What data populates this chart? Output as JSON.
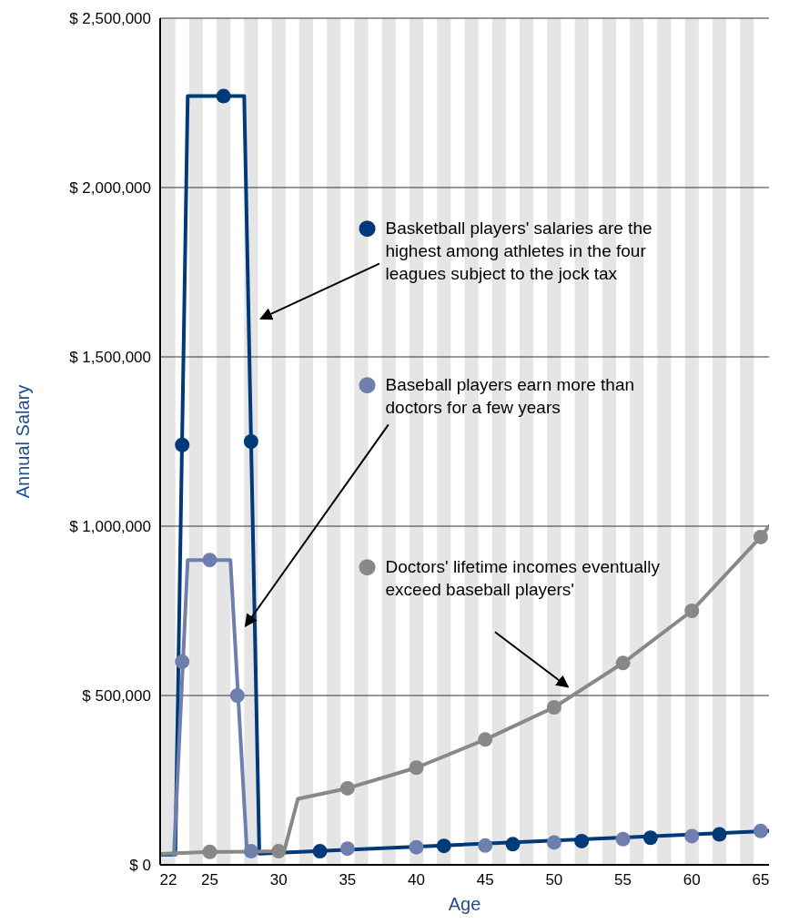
{
  "chart_data": {
    "type": "line",
    "xlabel": "Age",
    "ylabel": "Annual Salary",
    "xlim": [
      21.4,
      65.6
    ],
    "xticks": [
      22,
      25,
      30,
      35,
      40,
      45,
      50,
      55,
      60,
      65
    ],
    "ylim": [
      0,
      2500000
    ],
    "yticks": [
      {
        "value": 0,
        "label": "$ 0"
      },
      {
        "value": 500000,
        "label": "$ 500,000"
      },
      {
        "value": 1000000,
        "label": "$ 1,000,000"
      },
      {
        "value": 1500000,
        "label": "$ 1,500,000"
      },
      {
        "value": 2000000,
        "label": "$ 2,000,000"
      },
      {
        "value": 2500000,
        "label": "$ 2,500,000"
      }
    ],
    "grid": "y",
    "legend": "top right",
    "line_style": "solid",
    "series": [
      {
        "name": "Basketball players' salaries are the highest among athletes in the four leagues subject to the jock tax",
        "color": "#003a78",
        "x": [
          21.4,
          22.5,
          23.4,
          27.5,
          28.6,
          65.6
        ],
        "values": [
          30000,
          30000,
          2270000,
          2270000,
          33000,
          100000
        ],
        "marker": "none"
      },
      {
        "name": "Baseball players earn more than doctors for a few years",
        "color": "#6e7fae",
        "x": [
          22.4,
          23.4,
          26.5,
          27.7
        ],
        "values": [
          30000,
          900000,
          900000,
          40000
        ],
        "marker": "none"
      },
      {
        "name": "Doctors' lifetime incomes eventually exceed baseball players'",
        "color": "#888888",
        "x": [
          21.4,
          25,
          30.4,
          31.4,
          35,
          40,
          45,
          50,
          55,
          60,
          65,
          65.6
        ],
        "values": [
          32000,
          38000,
          40000,
          195000,
          226000,
          287000,
          370000,
          465000,
          596000,
          750000,
          968000,
          1000000
        ],
        "marker": "none"
      },
      {
        "type": "scatter",
        "color": "#888888",
        "x": [
          25,
          30,
          35,
          40,
          45,
          50,
          55,
          60,
          65
        ],
        "values": [
          38000,
          40000,
          226000,
          287000,
          370000,
          465000,
          596000,
          750000,
          968000
        ],
        "marker": "circle"
      },
      {
        "type": "scatter",
        "color": "#6e7fae",
        "x": [
          23,
          25,
          27,
          28,
          35,
          40,
          45,
          50,
          55,
          60,
          65
        ],
        "values": [
          600000,
          900000,
          500000,
          40000,
          48000,
          52000,
          57000,
          66000,
          76000,
          85000,
          100000
        ],
        "marker": "circle"
      },
      {
        "type": "scatter",
        "color": "#003a78",
        "x": [
          23,
          26,
          28,
          33,
          42,
          47,
          52,
          57,
          62
        ],
        "values": [
          1240000,
          2270000,
          1250000,
          40000,
          56000,
          61000,
          70000,
          80000,
          90000
        ],
        "marker": "circle"
      }
    ],
    "bands": [
      {
        "axis": "x",
        "from": 21.5,
        "to": 22.5,
        "color": "#e5e5e5"
      },
      {
        "axis": "x",
        "from": 23.5,
        "to": 24.5,
        "color": "#e5e5e5"
      },
      {
        "axis": "x",
        "from": 25.5,
        "to": 26.5,
        "color": "#e5e5e5"
      },
      {
        "axis": "x",
        "from": 27.5,
        "to": 28.5,
        "color": "#e5e5e5"
      },
      {
        "axis": "x",
        "from": 29.5,
        "to": 30.5,
        "color": "#e5e5e5"
      },
      {
        "axis": "x",
        "from": 31.5,
        "to": 32.5,
        "color": "#e5e5e5"
      },
      {
        "axis": "x",
        "from": 33.5,
        "to": 34.5,
        "color": "#e5e5e5"
      },
      {
        "axis": "x",
        "from": 35.5,
        "to": 36.5,
        "color": "#e5e5e5"
      },
      {
        "axis": "x",
        "from": 37.5,
        "to": 38.5,
        "color": "#e5e5e5"
      },
      {
        "axis": "x",
        "from": 39.5,
        "to": 40.5,
        "color": "#e5e5e5"
      },
      {
        "axis": "x",
        "from": 41.5,
        "to": 42.5,
        "color": "#e5e5e5"
      },
      {
        "axis": "x",
        "from": 43.5,
        "to": 44.5,
        "color": "#e5e5e5"
      },
      {
        "axis": "x",
        "from": 45.5,
        "to": 46.5,
        "color": "#e5e5e5"
      },
      {
        "axis": "x",
        "from": 47.5,
        "to": 48.5,
        "color": "#e5e5e5"
      },
      {
        "axis": "x",
        "from": 49.5,
        "to": 50.5,
        "color": "#e5e5e5"
      },
      {
        "axis": "x",
        "from": 51.5,
        "to": 52.5,
        "color": "#e5e5e5"
      },
      {
        "axis": "x",
        "from": 53.5,
        "to": 54.5,
        "color": "#e5e5e5"
      },
      {
        "axis": "x",
        "from": 55.5,
        "to": 56.5,
        "color": "#e5e5e5"
      },
      {
        "axis": "x",
        "from": 57.5,
        "to": 58.5,
        "color": "#e5e5e5"
      },
      {
        "axis": "x",
        "from": 59.5,
        "to": 60.5,
        "color": "#e5e5e5"
      },
      {
        "axis": "x",
        "from": 61.5,
        "to": 62.5,
        "color": "#e5e5e5"
      },
      {
        "axis": "x",
        "from": 63.5,
        "to": 64.5,
        "color": "#e5e5e5"
      }
    ]
  }
}
